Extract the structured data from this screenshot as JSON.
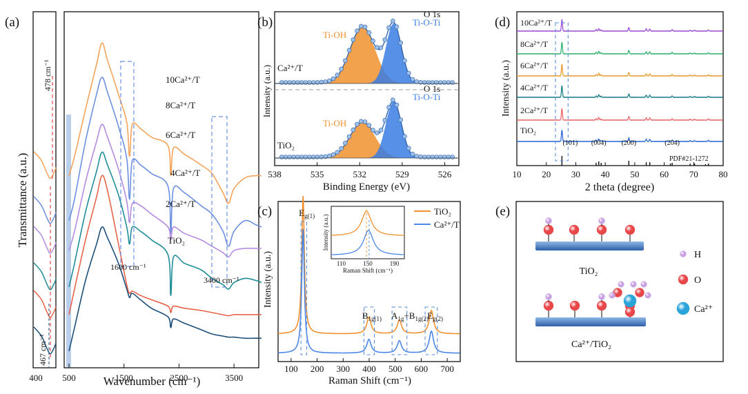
{
  "panels": {
    "a": {
      "label": "(a)",
      "ylabel": "Transmittance (a.u.)",
      "xlabel": "Wavenumber (cm⁻¹)",
      "left_ticks": [
        "400"
      ],
      "right_ticks": [
        "500",
        "1500",
        "2500",
        "3500"
      ],
      "annotations": [
        "478 cm⁻¹",
        "467 cm⁻¹",
        "1600 cm⁻¹",
        "3400 cm⁻¹"
      ]
    },
    "b": {
      "label": "(b)",
      "xlabel": "Binding Energy (eV)",
      "ylabel": "Intensity (a.u.)"
    },
    "c": {
      "label": "(c)",
      "xlabel": "Raman Shift (cm⁻¹)",
      "ylabel": "Intensity (a.u.)"
    },
    "d": {
      "label": "(d)",
      "xlabel": "2 theta (degree)",
      "ylabel": "Intensity (a.u.)"
    },
    "e": {
      "label": "(e)",
      "top_caption": "TiO₂",
      "bottom_caption": "Ca²⁺/TiO₂",
      "legend": [
        {
          "name": "H",
          "color": "#c9a2e3"
        },
        {
          "name": "O",
          "color": "#e8474a"
        },
        {
          "name": "Ca²⁺",
          "color": "#29a3d8"
        }
      ]
    }
  },
  "chart_data": [
    {
      "panel": "a",
      "type": "line",
      "xlabel": "Wavenumber (cm⁻¹)",
      "ylabel": "Transmittance (a.u.)",
      "xlim": [
        500,
        4000
      ],
      "xticks": [
        500,
        1500,
        2500,
        3500
      ],
      "series": [
        {
          "name": "10Ca²⁺/T",
          "color": "#f5a35a",
          "x": [
            500,
            600,
            800,
            1000,
            1100,
            1200,
            1400,
            1550,
            1600,
            1650,
            1800,
            2000,
            2300,
            2350,
            2400,
            2600,
            2900,
            3100,
            3300,
            3400,
            3500,
            3700,
            3900,
            4000
          ],
          "y": [
            8.4,
            9.3,
            11.5,
            13.6,
            14.6,
            13.8,
            12.2,
            10.9,
            9.3,
            10.8,
            10.6,
            10.2,
            9.8,
            8.4,
            9.7,
            9.4,
            8.9,
            8.5,
            7.6,
            7.1,
            7.8,
            8.3,
            8.4,
            8.4
          ]
        },
        {
          "name": "8Ca²⁺/T",
          "color": "#6b8fe0",
          "x": [
            500,
            600,
            800,
            1000,
            1100,
            1200,
            1400,
            1550,
            1600,
            1650,
            1800,
            2000,
            2300,
            2350,
            2400,
            2600,
            2900,
            3100,
            3300,
            3400,
            3500,
            3700,
            3900,
            4000
          ],
          "y": [
            6.3,
            7.3,
            10.0,
            12.2,
            13.0,
            12.3,
            10.7,
            9.2,
            7.3,
            9.1,
            8.9,
            8.5,
            7.9,
            5.7,
            7.8,
            7.6,
            7.0,
            6.6,
            5.8,
            5.1,
            5.8,
            6.3,
            6.1,
            6.0
          ]
        },
        {
          "name": "6Ca²⁺/T",
          "color": "#b48be0",
          "x": [
            500,
            600,
            800,
            1000,
            1100,
            1200,
            1400,
            1550,
            1600,
            1650,
            1800,
            2000,
            2300,
            2350,
            2400,
            2600,
            2900,
            3100,
            3300,
            3400,
            3500,
            3700,
            3900,
            4000
          ],
          "y": [
            4.9,
            5.8,
            8.1,
            10.0,
            10.8,
            10.2,
            8.7,
            7.2,
            6.2,
            7.1,
            7.0,
            6.6,
            6.0,
            5.4,
            6.0,
            5.7,
            5.4,
            5.1,
            4.8,
            4.6,
            4.9,
            5.0,
            5.0,
            5.0
          ]
        },
        {
          "name": "4Ca²⁺/T",
          "color": "#1f8d98",
          "x": [
            500,
            600,
            800,
            1000,
            1100,
            1200,
            1400,
            1550,
            1600,
            1650,
            1800,
            2000,
            2300,
            2350,
            2400,
            2600,
            2900,
            3100,
            3300,
            3400,
            3500,
            3700,
            3900,
            4000
          ],
          "y": [
            3.2,
            4.3,
            6.7,
            8.6,
            9.5,
            8.9,
            7.5,
            6.0,
            5.2,
            6.0,
            5.8,
            5.4,
            4.7,
            2.8,
            4.6,
            4.3,
            4.0,
            3.6,
            3.3,
            3.1,
            3.4,
            3.6,
            3.5,
            3.4
          ]
        },
        {
          "name": "2Ca²⁺/T",
          "color": "#e8634a",
          "x": [
            500,
            600,
            800,
            1000,
            1100,
            1200,
            1400,
            1550,
            1600,
            1650,
            1800,
            2000,
            2300,
            2350,
            2400,
            2600,
            2900,
            3100,
            3300,
            3400,
            3500,
            3700,
            3900,
            4000
          ],
          "y": [
            1.9,
            3.1,
            5.4,
            7.4,
            8.4,
            7.7,
            5.2,
            3.3,
            2.9,
            3.0,
            2.8,
            2.6,
            2.3,
            2.0,
            2.3,
            2.2,
            2.1,
            2.0,
            1.9,
            1.85,
            1.9,
            1.9,
            1.9,
            1.9
          ]
        },
        {
          "name": "TiO₂",
          "color": "#1c4f7a",
          "x": [
            500,
            600,
            800,
            1000,
            1100,
            1200,
            1400,
            1550,
            1600,
            1650,
            1800,
            2000,
            2300,
            2350,
            2400,
            2600,
            2900,
            3100,
            3300,
            3400,
            3500,
            3700,
            3900,
            4000
          ],
          "y": [
            0.2,
            1.3,
            3.5,
            5.2,
            6.0,
            5.5,
            4.3,
            3.1,
            2.7,
            2.9,
            2.6,
            2.2,
            1.8,
            1.3,
            1.7,
            1.5,
            1.2,
            1.0,
            0.9,
            0.85,
            0.85,
            0.8,
            0.8,
            0.8
          ]
        }
      ]
    },
    {
      "panel": "b",
      "type": "line",
      "title": "O 1s",
      "xlabel": "Binding Energy (eV)",
      "ylabel": "Intensity (a.u.)",
      "xlim": [
        538,
        525
      ],
      "xticks": [
        538,
        535,
        532,
        529,
        526
      ],
      "peaks": [
        {
          "name": "Ti-OH",
          "color": "#f0912e",
          "center": 531.8
        },
        {
          "name": "Ti-O-Ti",
          "color": "#3a7de3",
          "center": 529.6
        }
      ],
      "samples": [
        {
          "name": "Ca²⁺/T",
          "title": "O 1s",
          "ti_oh_height": 0.82,
          "ti_o_ti_height": 0.87
        },
        {
          "name": "TiO₂",
          "title": "O 1s",
          "ti_oh_height": 0.52,
          "ti_o_ti_height": 0.82
        }
      ]
    },
    {
      "panel": "c",
      "type": "line",
      "xlabel": "Raman Shift (cm⁻¹)",
      "ylabel": "Intensity (a.u.)",
      "xlim": [
        50,
        750
      ],
      "xticks": [
        100,
        200,
        300,
        400,
        500,
        600,
        700
      ],
      "peak_labels": [
        "E",
        "g(1)",
        "B",
        "1g(1)",
        "A",
        "1g",
        "+B",
        "1g(2)",
        "E",
        "g(2)"
      ],
      "series": [
        {
          "name": "TiO₂",
          "color": "#f0912e",
          "peaks": [
            [
              146,
              1.0
            ],
            [
              399,
              0.12
            ],
            [
              516,
              0.1
            ],
            [
              639,
              0.17
            ]
          ]
        },
        {
          "name": "Ca²⁺/T",
          "color": "#4b86e6",
          "peaks": [
            [
              146,
              0.9
            ],
            [
              399,
              0.1
            ],
            [
              516,
              0.09
            ],
            [
              639,
              0.16
            ]
          ]
        }
      ],
      "inset": {
        "xlabel": "Raman Shift (cm⁻¹)",
        "ylabel": "Intensity (a.u.)",
        "xticks": [
          110,
          150,
          190
        ]
      }
    },
    {
      "panel": "d",
      "type": "line",
      "xlabel": "2 theta (degree)",
      "ylabel": "Intensity (a.u.)",
      "xlim": [
        10,
        80
      ],
      "xticks": [
        10,
        20,
        30,
        40,
        50,
        60,
        70,
        80
      ],
      "reflections": [
        {
          "label": "(101)",
          "x": 25.3
        },
        {
          "label": "(004)",
          "x": 37.8
        },
        {
          "label": "(200)",
          "x": 48.0
        },
        {
          "label": "(204)",
          "x": 62.7
        }
      ],
      "reference": "PDF#21-1272",
      "series": [
        {
          "name": "10Ca²⁺/T",
          "color": "#9b4fd6"
        },
        {
          "name": "8Ca²⁺/T",
          "color": "#32b36e"
        },
        {
          "name": "6Ca²⁺/T",
          "color": "#e89d2f"
        },
        {
          "name": "4Ca²⁺/T",
          "color": "#1c7f8a"
        },
        {
          "name": "2Ca²⁺/T",
          "color": "#e8676b"
        },
        {
          "name": "TiO₂",
          "color": "#2e6bd6"
        }
      ]
    }
  ]
}
